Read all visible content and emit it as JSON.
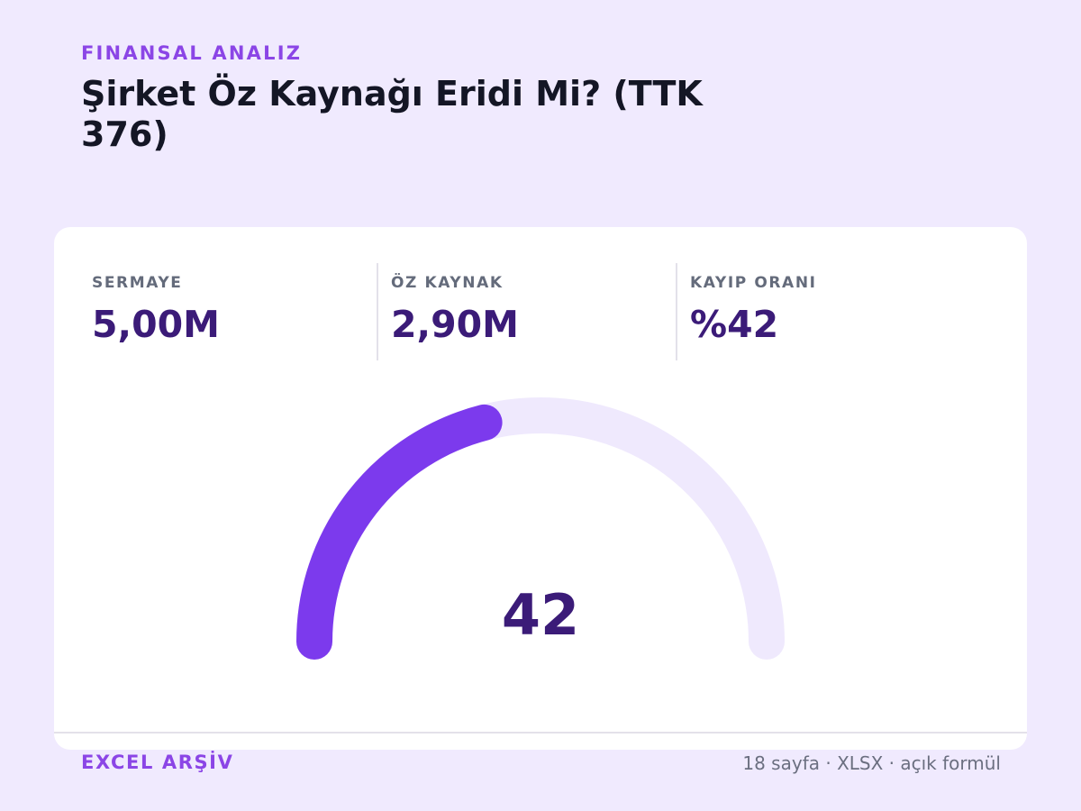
{
  "header": {
    "kicker": "FINANSAL ANALIZ",
    "title": "Şirket Öz Kaynağı Eridi Mi? (TTK 376)"
  },
  "stats": [
    {
      "label": "SERMAYE",
      "value": "5,00M"
    },
    {
      "label": "ÖZ KAYNAK",
      "value": "2,90M"
    },
    {
      "label": "KAYIP ORANI",
      "value": "%42"
    }
  ],
  "gauge": {
    "value": 42,
    "min": 0,
    "max": 100,
    "display": "42",
    "fill_color": "#7c3aed",
    "track_color": "#efe9fd"
  },
  "footer": {
    "brand": "EXCEL ARŞİV",
    "meta": "18 sayfa · XLSX · açık formül"
  }
}
